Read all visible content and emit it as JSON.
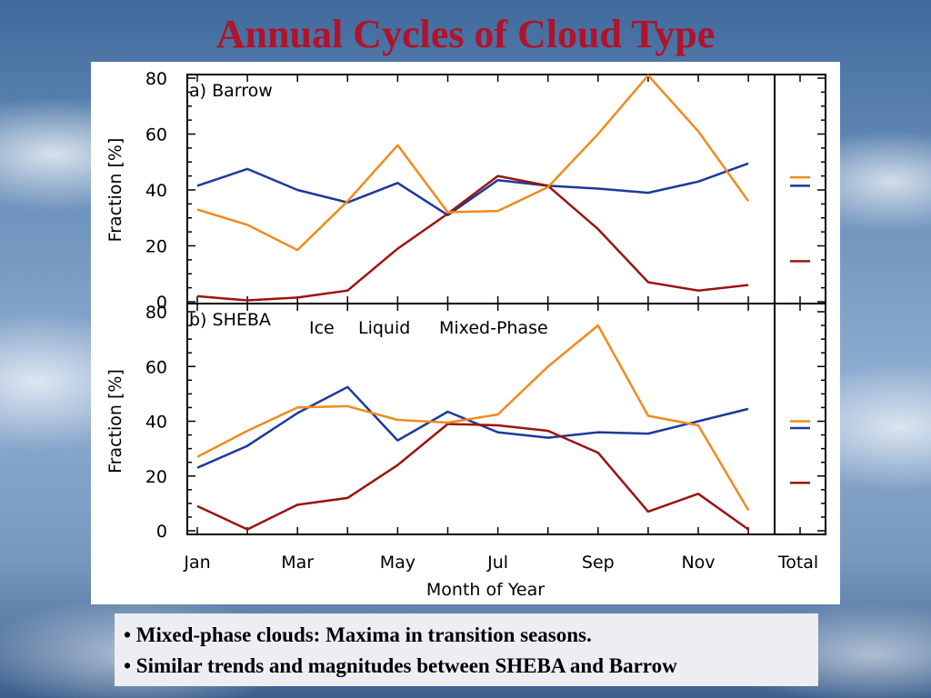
{
  "slide": {
    "title": "Annual Cycles of Cloud Type",
    "bullets": [
      "• Mixed-phase clouds: Maxima in transition seasons.",
      "• Similar trends and magnitudes between SHEBA and Barrow"
    ]
  },
  "colors": {
    "ice": "#1b3a9a",
    "liquid": "#9a1410",
    "mixed": "#f28a1e",
    "title": "#b0132b"
  },
  "chart_data": {
    "type": "line",
    "x": [
      "Jan",
      "Feb",
      "Mar",
      "Apr",
      "May",
      "Jun",
      "Jul",
      "Aug",
      "Sep",
      "Oct",
      "Nov",
      "Dec"
    ],
    "x_tick_labels": [
      "Jan",
      "Mar",
      "May",
      "Jul",
      "Sep",
      "Nov",
      "Total"
    ],
    "xlabel": "Month of Year",
    "ylim": [
      0,
      80
    ],
    "yticks": [
      "0",
      "20",
      "40",
      "60",
      "80"
    ],
    "legend": [
      "Ice",
      "Liquid",
      "Mixed-Phase"
    ],
    "panels": [
      {
        "title": "a) Barrow",
        "ylabel": "Fraction [%]",
        "series": [
          {
            "name": "Ice",
            "color": "#1b3a9a",
            "values": [
              41.5,
              47.5,
              40,
              35.5,
              42.5,
              31,
              43.5,
              41.5,
              40.5,
              39,
              43,
              49.5
            ]
          },
          {
            "name": "Liquid",
            "color": "#9a1410",
            "values": [
              2,
              0.5,
              1.5,
              4,
              19,
              31.5,
              45,
              41.5,
              26,
              7,
              4,
              6
            ]
          },
          {
            "name": "Mixed-Phase",
            "color": "#f28a1e",
            "values": [
              33,
              27.5,
              18.5,
              36,
              56,
              32,
              32.5,
              41,
              60,
              81,
              61,
              36
            ]
          }
        ],
        "totals": {
          "Ice": 41.5,
          "Liquid": 14.5,
          "Mixed-Phase": 44.5
        }
      },
      {
        "title": "b) SHEBA",
        "ylabel": "Fraction [%]",
        "series": [
          {
            "name": "Ice",
            "color": "#1b3a9a",
            "values": [
              23,
              31,
              43,
              52.5,
              33,
              43.5,
              36,
              34,
              36,
              35.5,
              40,
              44.5
            ]
          },
          {
            "name": "Liquid",
            "color": "#9a1410",
            "values": [
              9,
              0.5,
              9.5,
              12,
              24,
              39,
              38.5,
              36.5,
              28.5,
              7,
              13.5,
              0.5
            ]
          },
          {
            "name": "Mixed-Phase",
            "color": "#f28a1e",
            "values": [
              27,
              36.5,
              45,
              45.5,
              40.5,
              39.5,
              42.5,
              60,
              75,
              42,
              38.5,
              7.5
            ]
          }
        ],
        "totals": {
          "Ice": 37.5,
          "Liquid": 17.5,
          "Mixed-Phase": 40
        }
      }
    ]
  }
}
